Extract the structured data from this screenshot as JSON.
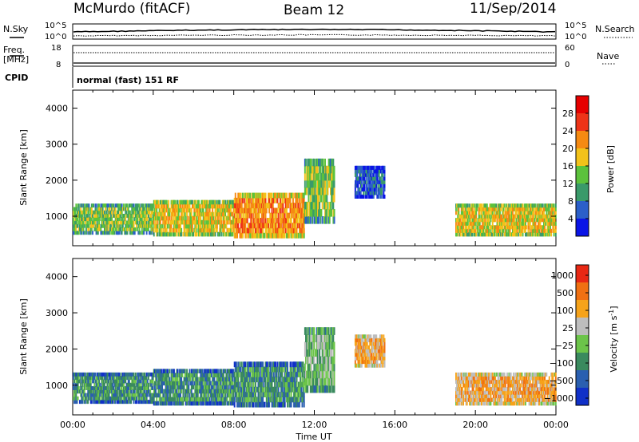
{
  "header": {
    "station": "McMurdo (fitACF)",
    "beam": "Beam 12",
    "date": "11/Sep/2014"
  },
  "top_panels": {
    "nsky_label": "N.Sky",
    "nsky_ticks": [
      "10^5",
      "10^0"
    ],
    "nsearch_label": "N.Search",
    "nsearch_ticks": [
      "10^5",
      "10^0"
    ],
    "freq_label": "Freq.",
    "freq_unit": "[MHz]",
    "freq_ticks": [
      "18",
      "8"
    ],
    "nave_label": "Nave",
    "nave_ticks": [
      "60",
      "0"
    ],
    "cpid_label": "CPID",
    "cpid_text": "normal (fast) 151 RF"
  },
  "chart_data": [
    {
      "type": "heatmap",
      "name": "power",
      "ylabel": "Slant Range [km]",
      "ylim": [
        180,
        4500
      ],
      "y_ticks": [
        "1000",
        "2000",
        "3000",
        "4000"
      ],
      "x_ticks": [
        "00:00",
        "04:00",
        "08:00",
        "12:00",
        "16:00",
        "20:00",
        "00:00"
      ],
      "colorbar": {
        "label": "Power [dB]",
        "ticks": [
          "4",
          "8",
          "12",
          "16",
          "20",
          "24",
          "28"
        ],
        "colors": [
          "#0a14e6",
          "#2b5fc9",
          "#3a9a6a",
          "#5cc23c",
          "#f2c21a",
          "#f58a12",
          "#ee3418",
          "#e60000"
        ]
      },
      "regions": [
        {
          "t0": 0.0,
          "t1": 4.0,
          "r0": 500,
          "r1": 1350,
          "level": 3
        },
        {
          "t0": 4.0,
          "t1": 8.0,
          "r0": 450,
          "r1": 1450,
          "level": 4
        },
        {
          "t0": 8.0,
          "t1": 11.5,
          "r0": 400,
          "r1": 1650,
          "level": 5
        },
        {
          "t0": 11.5,
          "t1": 13.0,
          "r0": 800,
          "r1": 2600,
          "level": 3
        },
        {
          "t0": 14.0,
          "t1": 15.5,
          "r0": 1500,
          "r1": 2400,
          "level": 1
        },
        {
          "t0": 19.0,
          "t1": 24.0,
          "r0": 450,
          "r1": 1350,
          "level": 4
        }
      ]
    },
    {
      "type": "heatmap",
      "name": "velocity",
      "ylabel": "Slant Range [km]",
      "ylim": [
        180,
        4500
      ],
      "y_ticks": [
        "1000",
        "2000",
        "3000",
        "4000"
      ],
      "x_ticks": [
        "00:00",
        "04:00",
        "08:00",
        "12:00",
        "16:00",
        "20:00",
        "00:00"
      ],
      "xlabel": "Time UT",
      "colorbar": {
        "label": "Velocity [m s^-1]",
        "ticks": [
          "1000",
          "500",
          "100",
          "25",
          "−25",
          "−100",
          "−500",
          "−1000"
        ],
        "colors": [
          "#1030c8",
          "#2a5fb0",
          "#3a8a5e",
          "#6cc44a",
          "#bdbdbd",
          "#f6a31a",
          "#f07012",
          "#e82814"
        ]
      },
      "regions": [
        {
          "t0": 0.0,
          "t1": 4.0,
          "r0": 500,
          "r1": 1350,
          "level": 2
        },
        {
          "t0": 4.0,
          "t1": 8.0,
          "r0": 450,
          "r1": 1450,
          "level": 2
        },
        {
          "t0": 8.0,
          "t1": 11.5,
          "r0": 400,
          "r1": 1650,
          "level": 2
        },
        {
          "t0": 11.5,
          "t1": 13.0,
          "r0": 800,
          "r1": 2600,
          "level": 3
        },
        {
          "t0": 14.0,
          "t1": 15.5,
          "r0": 1500,
          "r1": 2400,
          "level": 5
        },
        {
          "t0": 19.0,
          "t1": 24.0,
          "r0": 450,
          "r1": 1350,
          "level": 5
        }
      ]
    }
  ]
}
